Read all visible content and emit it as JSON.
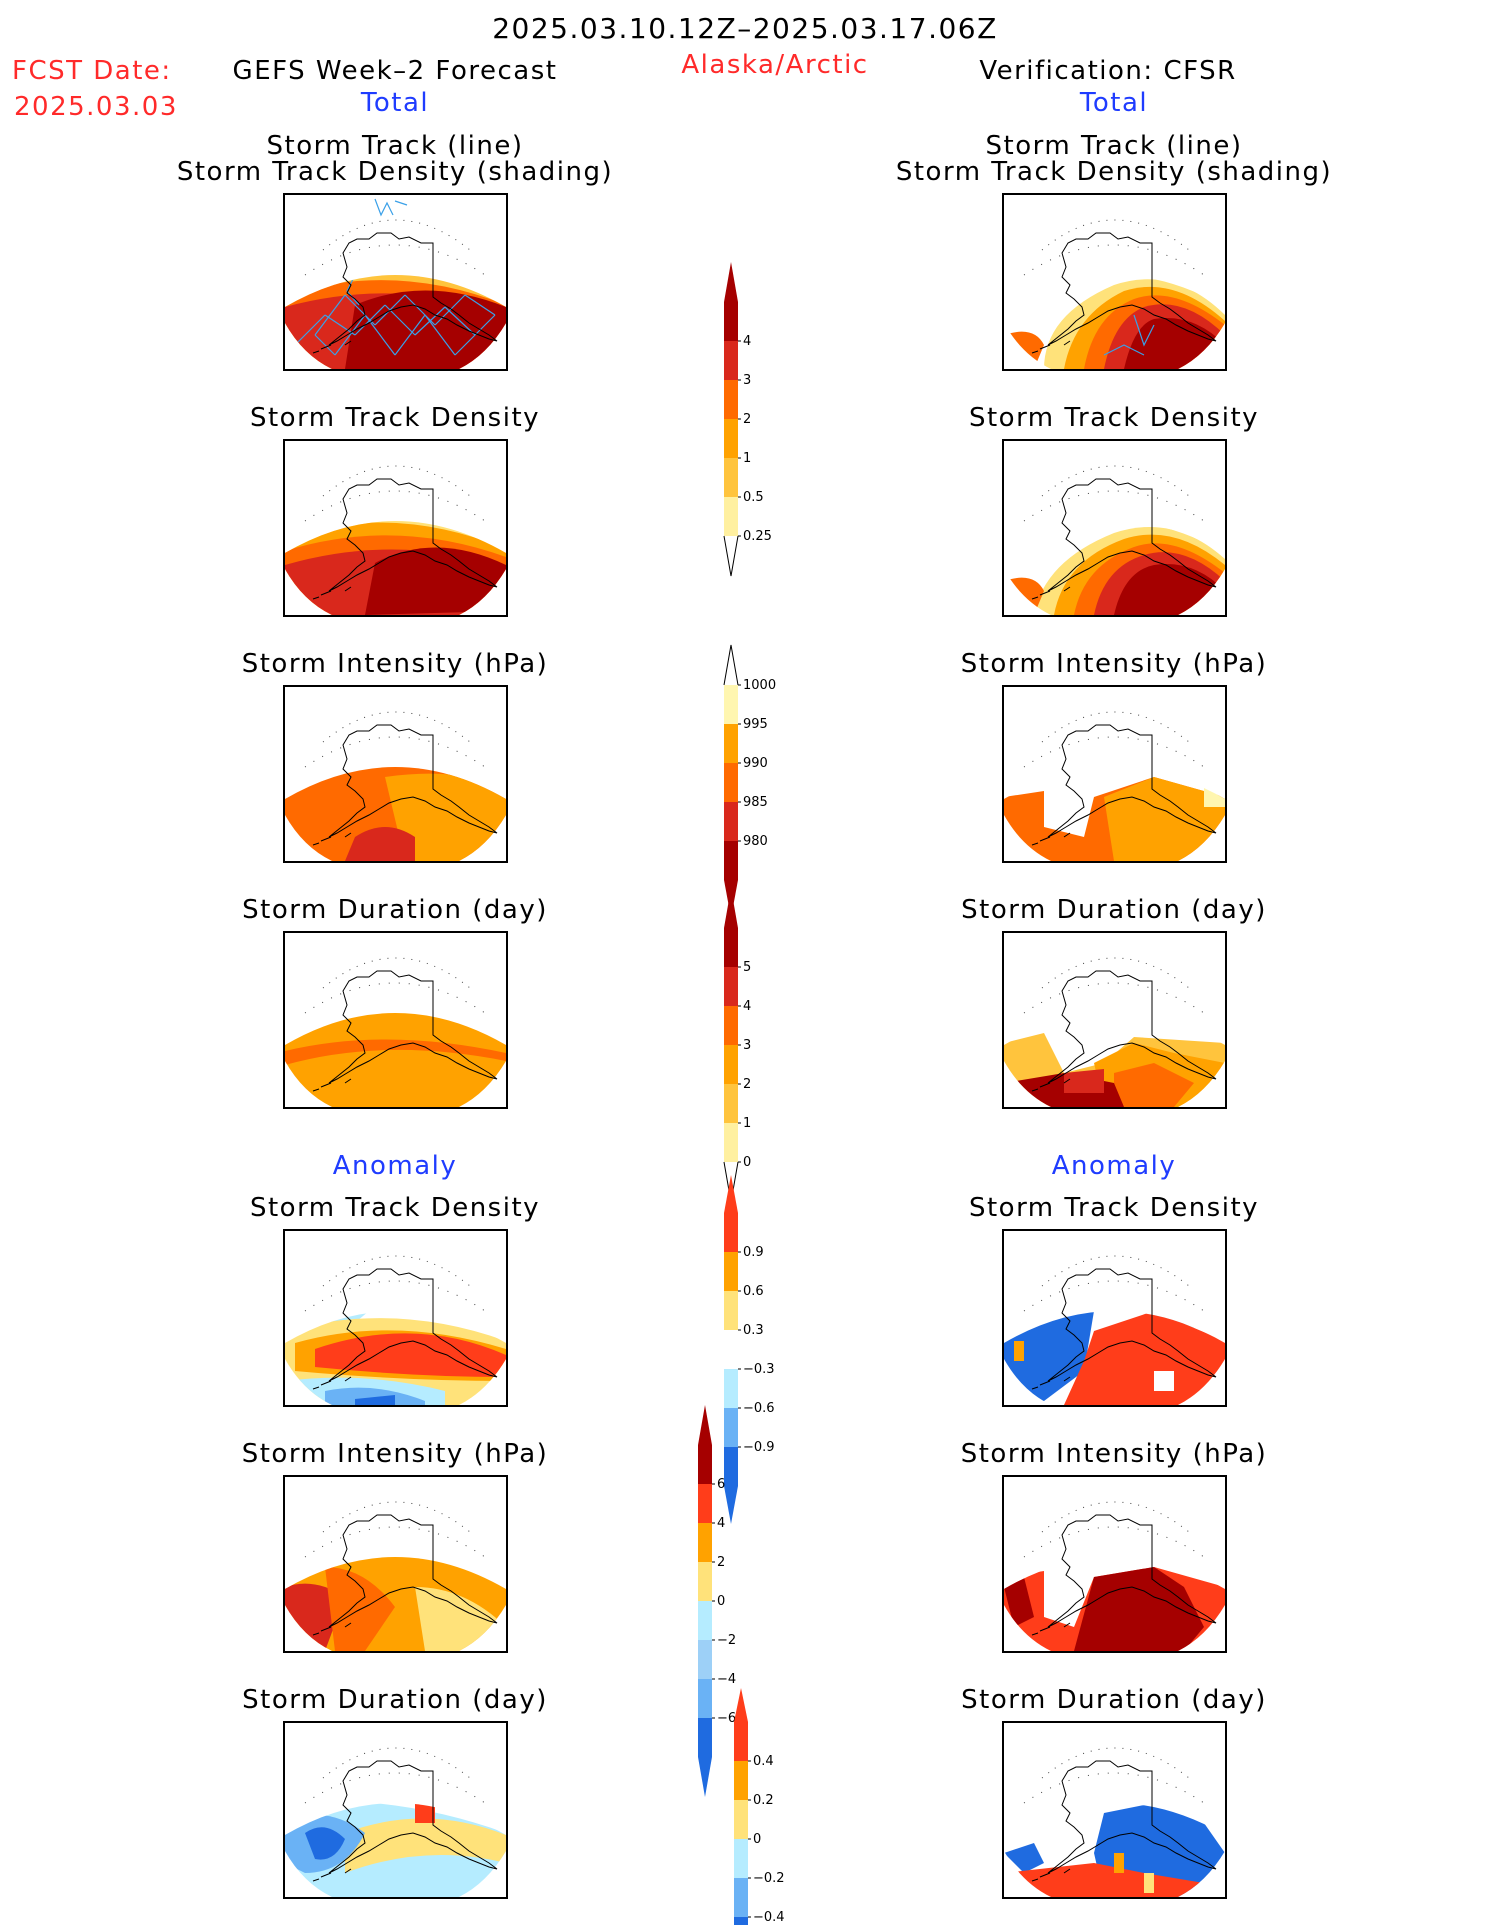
{
  "header": {
    "date_range": "2025.03.10.12Z–2025.03.17.06Z",
    "fcst_label": "FCST Date:",
    "fcst_date": "2025.03.03",
    "left_title": "GEFS Week–2 Forecast",
    "region": "Alaska/Arctic",
    "right_title": "Verification: CFSR",
    "left_subtitle": "Total",
    "right_subtitle": "Total"
  },
  "sections": {
    "anomaly_left": "Anomaly",
    "anomaly_right": "Anomaly"
  },
  "panels": {
    "track_title_1": "Storm Track (line)",
    "track_title_2": "Storm Track Density (shading)",
    "density": "Storm Track Density",
    "intensity": "Storm Intensity (hPa)",
    "duration": "Storm Duration (day)"
  },
  "colorbars": {
    "density_total": {
      "labels": [
        "4",
        "3",
        "2",
        "1",
        "0.5",
        "0.25"
      ],
      "colors": [
        "#a50000",
        "#d9281c",
        "#ff6a00",
        "#ffa200",
        "#ffc43d",
        "#fff0a0"
      ]
    },
    "intensity_total": {
      "labels": [
        "1000",
        "995",
        "990",
        "985",
        "980"
      ],
      "colors": [
        "#fff6b0",
        "#ffa200",
        "#ff6a00",
        "#d9281c",
        "#a50000"
      ]
    },
    "duration_total": {
      "labels": [
        "5",
        "4",
        "3",
        "2",
        "1",
        "0"
      ],
      "colors": [
        "#a50000",
        "#d9281c",
        "#ff6a00",
        "#ffa200",
        "#ffc43d",
        "#fff0a0"
      ]
    },
    "density_anom": {
      "labels": [
        "0.9",
        "0.6",
        "0.3",
        "−0.3",
        "−0.6",
        "−0.9"
      ],
      "colors": [
        "#ff3d1a",
        "#ffa200",
        "#ffe27a",
        "#ffffff",
        "#b5ecff",
        "#6ab2f5",
        "#1f6be0"
      ]
    },
    "intensity_anom": {
      "labels": [
        "6",
        "4",
        "2",
        "0",
        "−2",
        "−4",
        "−6"
      ],
      "colors": [
        "#a50000",
        "#ff3d1a",
        "#ffa200",
        "#ffe27a",
        "#b5ecff",
        "#9dd0f7",
        "#6ab2f5",
        "#1f6be0"
      ]
    },
    "duration_anom": {
      "labels": [
        "0.4",
        "0.2",
        "0",
        "−0.2",
        "−0.4"
      ],
      "colors": [
        "#ff3d1a",
        "#ffa200",
        "#ffe27a",
        "#b5ecff",
        "#6ab2f5",
        "#1f6be0"
      ]
    }
  }
}
